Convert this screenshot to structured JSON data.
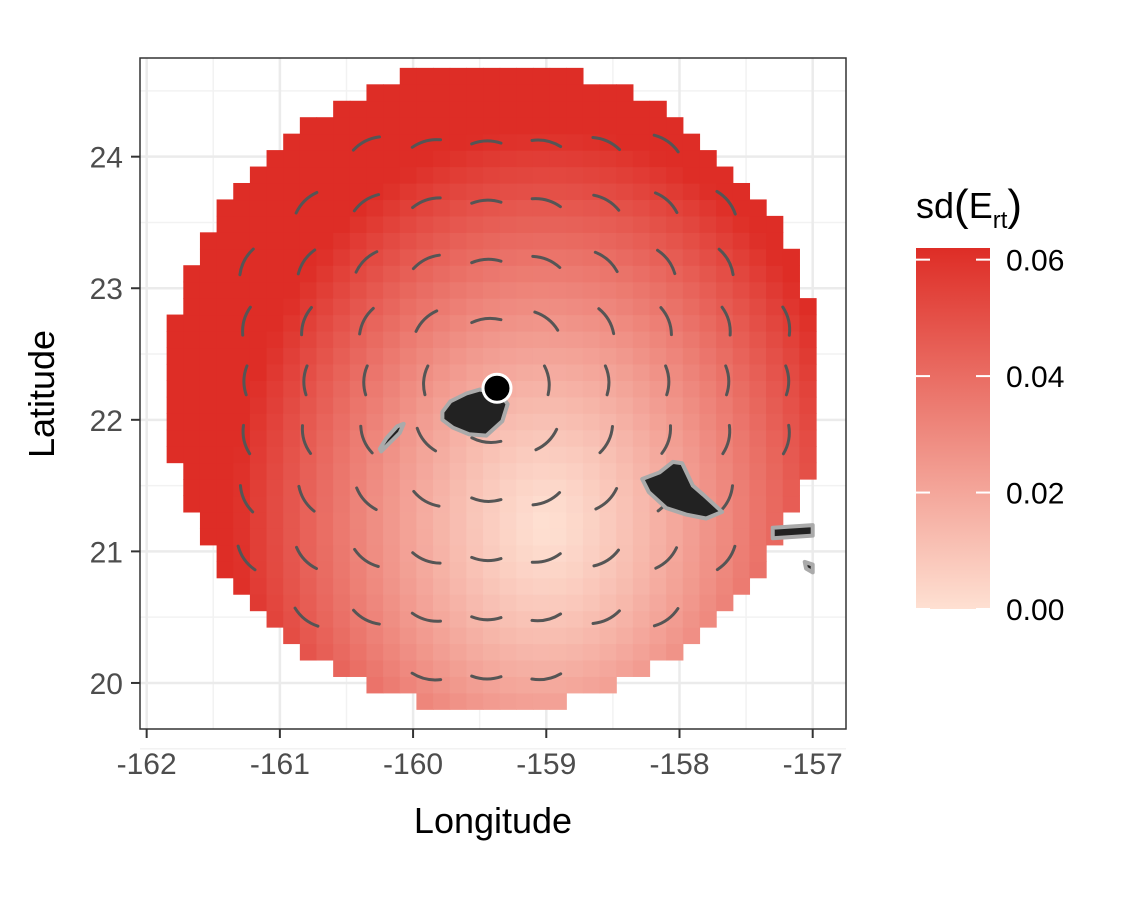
{
  "chart_data": {
    "type": "heatmap",
    "xlabel": "Longitude",
    "ylabel": "Latitude",
    "xlim": [
      -162.05,
      -156.75
    ],
    "ylim": [
      19.65,
      24.75
    ],
    "x_ticks": [
      -162,
      -161,
      -160,
      -159,
      -158,
      -157
    ],
    "x_tick_labels": [
      "-162",
      "-161",
      "-160",
      "-159",
      "-158",
      "-157"
    ],
    "y_ticks": [
      20,
      21,
      22,
      23,
      24
    ],
    "y_tick_labels": [
      "20",
      "21",
      "22",
      "23",
      "24"
    ],
    "grid": true,
    "theme": "bw",
    "legend": {
      "title_main": "sd",
      "title_symbol": "E",
      "title_subscript": "rt",
      "position": "right",
      "range": [
        0.0,
        0.062
      ],
      "ticks": [
        0.0,
        0.02,
        0.04,
        0.06
      ],
      "tick_labels": [
        "0.00",
        "0.02",
        "0.04",
        "0.06"
      ],
      "color_low": "#fee0d2",
      "color_high": "#de2d26"
    },
    "field": {
      "cell_size_deg": 0.125,
      "center": [
        -159.4,
        22.25
      ],
      "radius_deg": 2.45,
      "min_value_at": [
        -159.0,
        21.2
      ],
      "min_value": 0.0,
      "max_value": 0.062,
      "description_value_at_edge": 0.058
    },
    "site": {
      "lon": -159.37,
      "lat": 22.24
    },
    "islands": [
      {
        "name": "",
        "color": "#222222",
        "outline": "#aaaaaa",
        "polygon": [
          [
            -159.78,
            22.06
          ],
          [
            -159.72,
            22.14
          ],
          [
            -159.6,
            22.2
          ],
          [
            -159.5,
            22.23
          ],
          [
            -159.35,
            22.2
          ],
          [
            -159.29,
            22.12
          ],
          [
            -159.33,
            21.99
          ],
          [
            -159.45,
            21.88
          ],
          [
            -159.58,
            21.89
          ],
          [
            -159.7,
            21.94
          ],
          [
            -159.78,
            22.0
          ]
        ]
      },
      {
        "name": "",
        "color": "#222222",
        "outline": "#aaaaaa",
        "polygon": [
          [
            -160.25,
            21.78
          ],
          [
            -160.2,
            21.86
          ],
          [
            -160.12,
            21.95
          ],
          [
            -160.07,
            21.97
          ],
          [
            -160.1,
            21.9
          ],
          [
            -160.18,
            21.82
          ],
          [
            -160.24,
            21.76
          ]
        ]
      },
      {
        "name": "",
        "color": "#222222",
        "outline": "#aaaaaa",
        "polygon": [
          [
            -158.28,
            21.55
          ],
          [
            -158.15,
            21.6
          ],
          [
            -158.05,
            21.68
          ],
          [
            -157.98,
            21.67
          ],
          [
            -157.9,
            21.5
          ],
          [
            -157.82,
            21.43
          ],
          [
            -157.68,
            21.3
          ],
          [
            -157.8,
            21.25
          ],
          [
            -157.95,
            21.28
          ],
          [
            -158.1,
            21.33
          ],
          [
            -158.23,
            21.45
          ]
        ]
      },
      {
        "name": "",
        "color": "#222222",
        "outline": "#aaaaaa",
        "polygon": [
          [
            -157.3,
            21.18
          ],
          [
            -157.0,
            21.2
          ],
          [
            -157.0,
            21.12
          ],
          [
            -157.3,
            21.1
          ]
        ]
      },
      {
        "name": "",
        "color": "#222222",
        "outline": "#aaaaaa",
        "polygon": [
          [
            -157.06,
            20.92
          ],
          [
            -157.0,
            20.9
          ],
          [
            -157.0,
            20.84
          ],
          [
            -157.05,
            20.87
          ]
        ]
      }
    ]
  }
}
